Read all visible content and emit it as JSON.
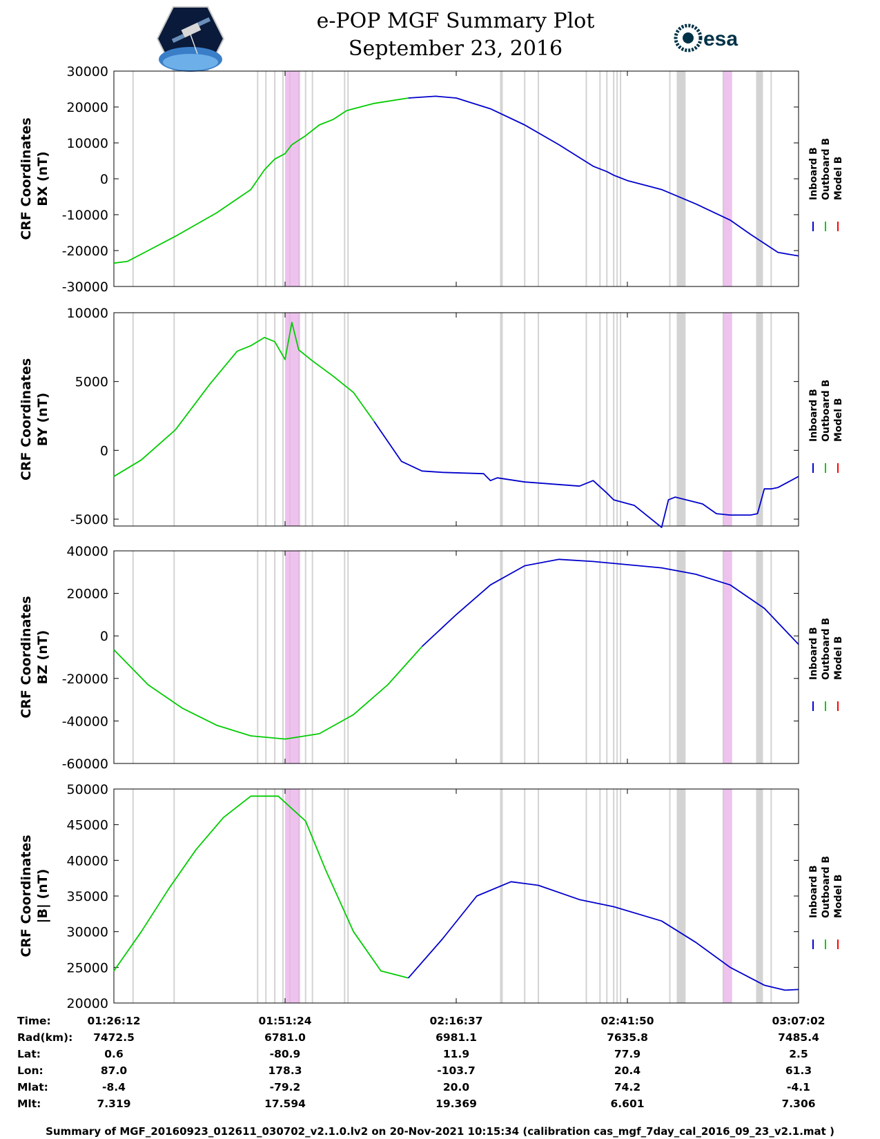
{
  "header": {
    "title_line1": "e-POP MGF Summary Plot",
    "title_line2": "September 23, 2016",
    "logo_left_icon": "satellite-mission-icon",
    "logo_right_text": "esa"
  },
  "legend": [
    "Inboard B",
    "Outboard B",
    "Model B"
  ],
  "colors": {
    "inboard": "#0000cc",
    "outboard": "#00cc00",
    "model": "#ff0000",
    "gray_band": "#d3d3d3",
    "pink_band": "#e8b4e8"
  },
  "chart_data": [
    {
      "type": "line",
      "ylabel_line1": "CRF Coordinates",
      "ylabel_line2": "BX (nT)",
      "ylim": [
        -30000,
        30000
      ],
      "yticks": [
        30000,
        20000,
        10000,
        0,
        -10000,
        -20000,
        -30000
      ],
      "ytick_labels": [
        "30000",
        "20000",
        "10000",
        "0",
        "-10000",
        "-20000",
        "-30000"
      ],
      "series": [
        {
          "name": "Outboard B",
          "x": [
            0,
            0.02,
            0.05,
            0.09,
            0.15,
            0.2,
            0.22,
            0.235,
            0.25,
            0.26,
            0.28,
            0.3,
            0.32,
            0.34,
            0.36,
            0.38,
            0.43
          ],
          "values": [
            -23500,
            -23000,
            -20000,
            -16000,
            -9500,
            -3000,
            2500,
            5500,
            7000,
            9500,
            12000,
            15000,
            16500,
            19000,
            20000,
            21000,
            22500
          ]
        },
        {
          "name": "Inboard B",
          "x": [
            0.43,
            0.47,
            0.5,
            0.55,
            0.6,
            0.65,
            0.7,
            0.72,
            0.73,
            0.75,
            0.78,
            0.8,
            0.85,
            0.9,
            0.93,
            0.97,
            1.0
          ],
          "values": [
            22500,
            23000,
            22500,
            19500,
            15000,
            9500,
            3500,
            2000,
            1000,
            -500,
            -2000,
            -3000,
            -7000,
            -11500,
            -15500,
            -20500,
            -21500
          ]
        }
      ]
    },
    {
      "type": "line",
      "ylabel_line1": "CRF Coordinates",
      "ylabel_line2": "BY (nT)",
      "ylim": [
        -5500,
        10000
      ],
      "yticks": [
        10000,
        5000,
        0,
        -5000
      ],
      "ytick_labels": [
        "10000",
        "5000",
        "0",
        "-5000"
      ],
      "series": [
        {
          "name": "Outboard B",
          "x": [
            0,
            0.04,
            0.09,
            0.14,
            0.18,
            0.2,
            0.22,
            0.235,
            0.25,
            0.26,
            0.27,
            0.29,
            0.32,
            0.35,
            0.38
          ],
          "values": [
            -1900,
            -700,
            1500,
            4800,
            7200,
            7600,
            8200,
            7900,
            6600,
            9300,
            7300,
            6500,
            5400,
            4200,
            2100
          ]
        },
        {
          "name": "Inboard B",
          "x": [
            0.38,
            0.42,
            0.45,
            0.48,
            0.54,
            0.55,
            0.56,
            0.6,
            0.68,
            0.7,
            0.72,
            0.73,
            0.76,
            0.8,
            0.81,
            0.82,
            0.86,
            0.88,
            0.9,
            0.93,
            0.94,
            0.95,
            0.96,
            0.97,
            1.0
          ],
          "values": [
            2100,
            -800,
            -1500,
            -1600,
            -1700,
            -2200,
            -2000,
            -2300,
            -2600,
            -2200,
            -3100,
            -3600,
            -4000,
            -5600,
            -3600,
            -3400,
            -3900,
            -4600,
            -4700,
            -4700,
            -4600,
            -2800,
            -2800,
            -2700,
            -1900
          ]
        }
      ]
    },
    {
      "type": "line",
      "ylabel_line1": "CRF Coordinates",
      "ylabel_line2": "BZ (nT)",
      "ylim": [
        -60000,
        40000
      ],
      "yticks": [
        40000,
        20000,
        0,
        -20000,
        -40000,
        -60000
      ],
      "ytick_labels": [
        "40000",
        "20000",
        "0",
        "-20000",
        "-40000",
        "-60000"
      ],
      "series": [
        {
          "name": "Outboard B",
          "x": [
            0,
            0.05,
            0.1,
            0.15,
            0.2,
            0.25,
            0.3,
            0.35,
            0.4,
            0.45
          ],
          "values": [
            -6500,
            -23000,
            -34000,
            -42000,
            -47000,
            -48500,
            -46000,
            -37000,
            -23000,
            -5000
          ]
        },
        {
          "name": "Inboard B",
          "x": [
            0.45,
            0.5,
            0.55,
            0.6,
            0.65,
            0.7,
            0.75,
            0.8,
            0.85,
            0.9,
            0.95,
            1.0
          ],
          "values": [
            -5000,
            10000,
            24000,
            33000,
            36000,
            35000,
            33500,
            32000,
            29000,
            24000,
            13000,
            -4000
          ]
        }
      ]
    },
    {
      "type": "line",
      "ylabel_line1": "CRF Coordinates",
      "ylabel_line2": "|B| (nT)",
      "ylim": [
        20000,
        50000
      ],
      "yticks": [
        50000,
        45000,
        40000,
        35000,
        30000,
        25000,
        20000
      ],
      "ytick_labels": [
        "50000",
        "45000",
        "40000",
        "35000",
        "30000",
        "25000",
        "20000"
      ],
      "series": [
        {
          "name": "Outboard B",
          "x": [
            0,
            0.04,
            0.08,
            0.12,
            0.16,
            0.2,
            0.24,
            0.28,
            0.31,
            0.35,
            0.39,
            0.43
          ],
          "values": [
            24500,
            30000,
            36000,
            41500,
            46000,
            49000,
            49000,
            45500,
            38500,
            30000,
            24500,
            23500
          ]
        },
        {
          "name": "Inboard B",
          "x": [
            0.43,
            0.48,
            0.53,
            0.58,
            0.62,
            0.68,
            0.73,
            0.8,
            0.85,
            0.9,
            0.95,
            0.98,
            1.0
          ],
          "values": [
            23500,
            29000,
            35000,
            37000,
            36500,
            34500,
            33500,
            31500,
            28500,
            25000,
            22500,
            21800,
            21900
          ]
        }
      ]
    }
  ],
  "markers": {
    "gray_lines": [
      0.028,
      0.088,
      0.21,
      0.222,
      0.235,
      0.247,
      0.257,
      0.27,
      0.28,
      0.29,
      0.337,
      0.342,
      0.565,
      0.567,
      0.6,
      0.62,
      0.69,
      0.71,
      0.72,
      0.73,
      0.735,
      0.74,
      0.812,
      0.89,
      0.96
    ],
    "gray_bands": [
      [
        0.822,
        0.835
      ],
      [
        0.938,
        0.948
      ]
    ],
    "pink_bands": [
      [
        0.25,
        0.272
      ],
      [
        0.89,
        0.903
      ]
    ]
  },
  "info": {
    "rows": [
      {
        "label": "Time:",
        "values": [
          "01:26:12",
          "01:51:24",
          "02:16:37",
          "02:41:50",
          "03:07:02"
        ]
      },
      {
        "label": "Rad(km):",
        "values": [
          "7472.5",
          "6781.0",
          "6981.1",
          "7635.8",
          "7485.4"
        ]
      },
      {
        "label": "Lat:",
        "values": [
          "0.6",
          "-80.9",
          "11.9",
          "77.9",
          "2.5"
        ]
      },
      {
        "label": "Lon:",
        "values": [
          "87.0",
          "178.3",
          "-103.7",
          "20.4",
          "61.3"
        ]
      },
      {
        "label": "Mlat:",
        "values": [
          "-8.4",
          "-79.2",
          "20.0",
          "74.2",
          "-4.1"
        ]
      },
      {
        "label": "Mlt:",
        "values": [
          "7.319",
          "17.594",
          "19.369",
          "6.601",
          "7.306"
        ]
      }
    ],
    "tick_positions": [
      0,
      0.25,
      0.5,
      0.75,
      1.0
    ]
  },
  "footer": "Summary of MGF_20160923_012611_030702_v2.1.0.lv2 on 20-Nov-2021 10:15:34 (calibration cas_mgf_7day_cal_2016_09_23_v2.1.mat )"
}
